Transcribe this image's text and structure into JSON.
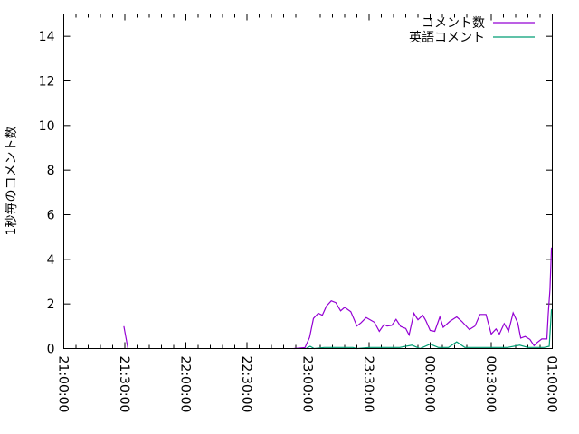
{
  "chart_data": {
    "type": "line",
    "title": "",
    "xlabel": "",
    "ylabel": "1秒毎のコメント数",
    "xlim": [
      "21:00:00",
      "01:00:00"
    ],
    "ylim": [
      0,
      15
    ],
    "x_ticks": [
      "21:00:00",
      "21:30:00",
      "22:00:00",
      "22:30:00",
      "23:00:00",
      "23:30:00",
      "00:00:00",
      "00:30:00",
      "01:00:00"
    ],
    "y_ticks": [
      "0",
      "2",
      "4",
      "6",
      "8",
      "10",
      "12",
      "14"
    ],
    "grid": false,
    "legend_position": "top-right",
    "series": [
      {
        "name": "コメント数",
        "color": "#9400d3",
        "segments": [
          [
            [
              "21:29:30",
              1.0
            ],
            [
              "21:31:30",
              0
            ]
          ],
          [
            [
              "22:53:00",
              0
            ],
            [
              "22:58:30",
              0.04
            ],
            [
              "23:00:45",
              0.5
            ],
            [
              "23:02:40",
              1.35
            ],
            [
              "23:05:00",
              1.58
            ],
            [
              "23:07:00",
              1.49
            ],
            [
              "23:09:00",
              1.9
            ],
            [
              "23:11:25",
              2.14
            ],
            [
              "23:13:40",
              2.06
            ],
            [
              "23:16:00",
              1.69
            ],
            [
              "23:18:00",
              1.85
            ],
            [
              "23:21:00",
              1.65
            ],
            [
              "23:24:00",
              1.01
            ],
            [
              "23:26:00",
              1.15
            ],
            [
              "23:28:35",
              1.39
            ],
            [
              "23:32:35",
              1.18
            ],
            [
              "23:35:00",
              0.77
            ],
            [
              "23:37:20",
              1.08
            ],
            [
              "23:38:50",
              1.01
            ],
            [
              "23:41:10",
              1.04
            ],
            [
              "23:43:15",
              1.31
            ],
            [
              "23:45:30",
              0.99
            ],
            [
              "23:48:00",
              0.9
            ],
            [
              "23:49:40",
              0.61
            ],
            [
              "23:52:00",
              1.58
            ],
            [
              "23:54:00",
              1.29
            ],
            [
              "23:56:20",
              1.49
            ],
            [
              "23:57:50",
              1.26
            ],
            [
              "00:00:00",
              0.81
            ],
            [
              "00:02:15",
              0.77
            ],
            [
              "00:04:45",
              1.42
            ],
            [
              "00:06:25",
              0.95
            ],
            [
              "00:09:40",
              1.22
            ],
            [
              "00:13:00",
              1.42
            ],
            [
              "00:15:30",
              1.22
            ],
            [
              "00:19:15",
              0.85
            ],
            [
              "00:22:00",
              1.01
            ],
            [
              "00:24:30",
              1.53
            ],
            [
              "00:27:25",
              1.53
            ],
            [
              "00:30:00",
              0.65
            ],
            [
              "00:32:20",
              0.88
            ],
            [
              "00:34:00",
              0.65
            ],
            [
              "00:36:20",
              1.12
            ],
            [
              "00:38:30",
              0.77
            ],
            [
              "00:40:45",
              1.6
            ],
            [
              "00:43:00",
              1.15
            ],
            [
              "00:44:30",
              0.47
            ],
            [
              "00:46:40",
              0.54
            ],
            [
              "00:49:00",
              0.41
            ],
            [
              "00:51:00",
              0.13
            ],
            [
              "00:52:35",
              0.27
            ],
            [
              "00:54:50",
              0.43
            ],
            [
              "00:57:20",
              0.43
            ],
            [
              "00:58:00",
              1.55
            ],
            [
              "00:58:50",
              2.64
            ],
            [
              "00:59:35",
              4.53
            ]
          ]
        ]
      },
      {
        "name": "英語コメント",
        "color": "#009e73",
        "segments": [
          [
            [
              "22:59:00",
              0
            ],
            [
              "23:01:00",
              0.1
            ],
            [
              "23:03:00",
              0
            ],
            [
              "23:08:00",
              0.05
            ],
            [
              "23:22:00",
              0.05
            ],
            [
              "23:24:00",
              0
            ],
            [
              "23:30:00",
              0.05
            ],
            [
              "23:36:00",
              0.05
            ],
            [
              "23:45:00",
              0.05
            ],
            [
              "23:51:00",
              0.15
            ],
            [
              "23:55:00",
              0
            ],
            [
              "00:00:00",
              0.2
            ],
            [
              "00:04:00",
              0.05
            ],
            [
              "00:09:00",
              0.05
            ],
            [
              "00:13:00",
              0.3
            ],
            [
              "00:17:00",
              0.05
            ],
            [
              "00:24:00",
              0.05
            ],
            [
              "00:38:00",
              0.05
            ],
            [
              "00:44:00",
              0.15
            ],
            [
              "00:48:00",
              0.05
            ],
            [
              "00:56:00",
              0.05
            ],
            [
              "00:58:30",
              0.1
            ],
            [
              "00:59:35",
              1.76
            ]
          ]
        ]
      }
    ]
  }
}
